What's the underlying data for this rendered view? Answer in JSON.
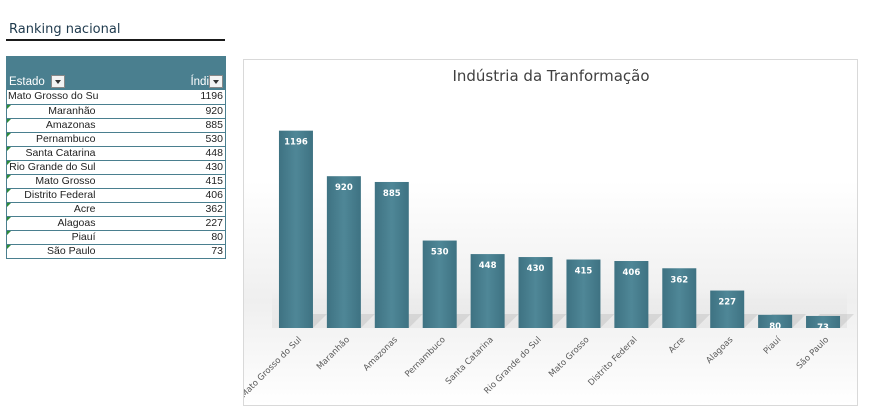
{
  "section": {
    "title": "Ranking nacional"
  },
  "table": {
    "headers": {
      "state": "Estado",
      "index": "Índi"
    },
    "rows": [
      {
        "state": "Mato Grosso do Sul",
        "value": "1196"
      },
      {
        "state": "Maranhão",
        "value": "920"
      },
      {
        "state": "Amazonas",
        "value": "885"
      },
      {
        "state": "Pernambuco",
        "value": "530"
      },
      {
        "state": "Santa Catarina",
        "value": "448"
      },
      {
        "state": "Rio Grande do Sul",
        "value": "430"
      },
      {
        "state": "Mato Grosso",
        "value": "415"
      },
      {
        "state": "Distrito Federal",
        "value": "406"
      },
      {
        "state": "Acre",
        "value": "362"
      },
      {
        "state": "Alagoas",
        "value": "227"
      },
      {
        "state": "Piauí",
        "value": "80"
      },
      {
        "state": "São Paulo",
        "value": "73"
      }
    ]
  },
  "colors": {
    "bar": "#4a7f8f",
    "header": "#4a7f8f",
    "marker": "#2e8b3a"
  },
  "chart_data": {
    "type": "bar",
    "title": "Indústria da Tranformação",
    "categories": [
      "Mato Grosso do Sul",
      "Maranhão",
      "Amazonas",
      "Pernambuco",
      "Santa Catarina",
      "Rio Grande do Sul",
      "Mato Grosso",
      "Distrito Federal",
      "Acre",
      "Alagoas",
      "Piauí",
      "São Paulo"
    ],
    "values": [
      1196,
      920,
      885,
      530,
      448,
      430,
      415,
      406,
      362,
      227,
      80,
      73
    ],
    "data_labels": true,
    "grid": false,
    "legend": "none",
    "ylim": [
      0,
      1200
    ]
  }
}
